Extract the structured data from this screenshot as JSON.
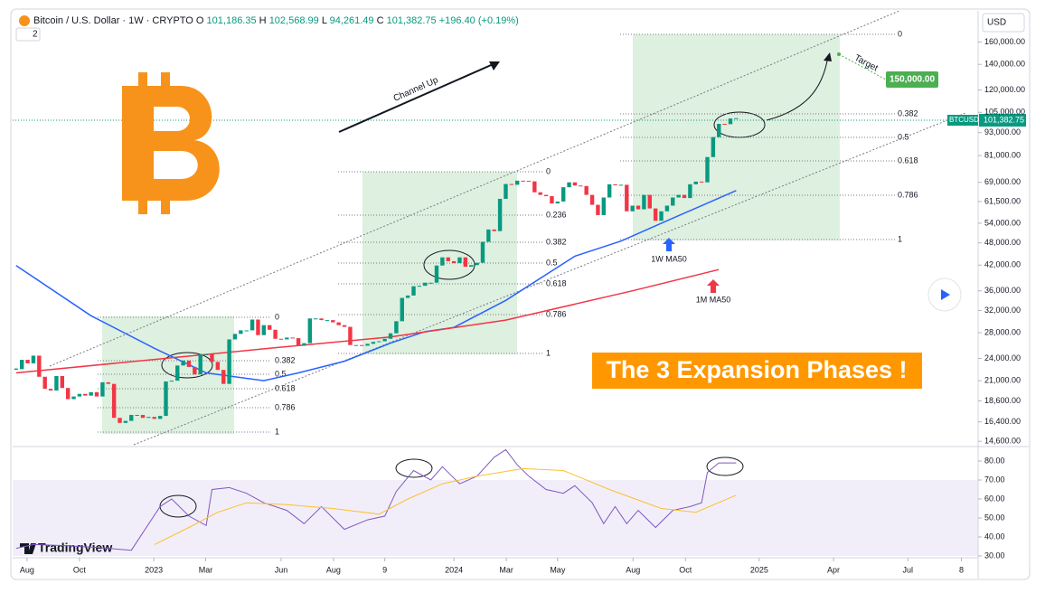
{
  "header": {
    "symbol": "Bitcoin / U.S. Dollar · 1W · CRYPTO",
    "ohlc": [
      {
        "key": "O",
        "value": "101,186.35"
      },
      {
        "key": "H",
        "value": "102,568.99"
      },
      {
        "key": "L",
        "value": "94,261.49"
      },
      {
        "key": "C",
        "value": "101,382.75"
      }
    ],
    "change": "+196.40 (+0.19%)",
    "indicators": "2"
  },
  "currency": "USD",
  "brand": "TradingView",
  "annotations": {
    "channel": "Channel Up",
    "target": "Target",
    "target_price": "150,000.00",
    "banner": "The 3 Expansion Phases !",
    "fib_sets": [
      [
        "0",
        "0.382",
        "0.5",
        "0.618",
        "0.786",
        "1"
      ],
      [
        "0",
        "0.236",
        "0.382",
        "0.5",
        "0.618",
        "0.786",
        "1"
      ],
      [
        "0",
        "0.382",
        "0.5",
        "0.618",
        "0.786",
        "1"
      ]
    ]
  },
  "chart_data": [
    {
      "type": "candlestick",
      "log_scale": true,
      "up_color": "#089981",
      "down_color": "#f23645",
      "closes": [
        22500,
        23800,
        23300,
        24400,
        21500,
        20000,
        19800,
        21600,
        20100,
        18800,
        19100,
        19400,
        19200,
        19600,
        19100,
        20800,
        20600,
        16800,
        16300,
        16500,
        17100,
        17100,
        16800,
        16900,
        16700,
        17000,
        20900,
        21000,
        23000,
        23700,
        22800,
        21800,
        24600,
        24600,
        23500,
        22400,
        20600,
        26900,
        27800,
        28400,
        28400,
        30300,
        27600,
        29300,
        28500,
        27000,
        26900,
        27200,
        27100,
        25900,
        26300,
        30500,
        30500,
        30200,
        30200,
        29800,
        29300,
        29000,
        26000,
        26000,
        25900,
        26200,
        26500,
        26600,
        27000,
        27900,
        30000,
        34500,
        35000,
        37000,
        37100,
        37800,
        37800,
        41900,
        44000,
        43000,
        42500,
        44000,
        41600,
        42000,
        42600,
        48300,
        52000,
        51500,
        62500,
        68300,
        68000,
        69700,
        69600,
        69400,
        65000,
        64000,
        63500,
        60800,
        61500,
        67000,
        69000,
        67700,
        67500,
        64000,
        60300,
        56700,
        63000,
        68200,
        67800,
        68000,
        58000,
        60000,
        58700,
        64000,
        59000,
        54800,
        58000,
        60000,
        63000,
        64000,
        62800,
        68200,
        69300,
        69000,
        80300,
        90500,
        98000,
        97800,
        101200,
        101382.75
      ],
      "xlim": [
        -0.6,
        167
      ],
      "xticks": [
        {
          "value": 1.9,
          "label": "Aug"
        },
        {
          "value": 11,
          "label": "Oct"
        },
        {
          "value": 23.9,
          "label": "2023"
        },
        {
          "value": 32.9,
          "label": "Mar"
        },
        {
          "value": 46,
          "label": "Jun"
        },
        {
          "value": 55.1,
          "label": "Aug"
        },
        {
          "value": 64,
          "label": "9"
        },
        {
          "value": 76,
          "label": "2024"
        },
        {
          "value": 85.1,
          "label": "Mar"
        },
        {
          "value": 94,
          "label": "May"
        },
        {
          "value": 107.1,
          "label": "Aug"
        },
        {
          "value": 116.2,
          "label": "Oct"
        },
        {
          "value": 129,
          "label": "2025"
        },
        {
          "value": 141.9,
          "label": "Apr"
        },
        {
          "value": 154.8,
          "label": "Jul"
        },
        {
          "value": 164.1,
          "label": "8"
        }
      ],
      "ylim": [
        14300,
        193000
      ],
      "yticks": [
        {
          "value": 14600,
          "label": "14,600.00"
        },
        {
          "value": 16400,
          "label": "16,400.00"
        },
        {
          "value": 18600,
          "label": "18,600.00"
        },
        {
          "value": 21000,
          "label": "21,000.00"
        },
        {
          "value": 24000,
          "label": "24,000.00"
        },
        {
          "value": 28000,
          "label": "28,000.00"
        },
        {
          "value": 32000,
          "label": "32,000.00"
        },
        {
          "value": 36000,
          "label": "36,000.00"
        },
        {
          "value": 42000,
          "label": "42,000.00"
        },
        {
          "value": 48000,
          "label": "48,000.00"
        },
        {
          "value": 54000,
          "label": "54,000.00"
        },
        {
          "value": 61500,
          "label": "61,500.00"
        },
        {
          "value": 69000,
          "label": "69,000.00"
        },
        {
          "value": 81000,
          "label": "81,000.00"
        },
        {
          "value": 93000,
          "label": "93,000.00"
        },
        {
          "value": 105000,
          "label": "105,000.00"
        },
        {
          "value": 120000,
          "label": "120,000.00"
        },
        {
          "value": 140000,
          "label": "140,000.00"
        },
        {
          "value": 160000,
          "label": "160,000.00"
        }
      ],
      "series": [
        {
          "name": "1W MA50",
          "color": "#2962ff",
          "x": [
            0,
            13,
            24,
            33,
            43,
            49,
            57,
            65,
            71,
            76,
            85,
            97,
            105,
            113,
            125
          ],
          "values": [
            41900,
            31000,
            25500,
            22000,
            21000,
            22000,
            23600,
            26300,
            28200,
            28900,
            34000,
            44300,
            48500,
            54800,
            65700
          ]
        },
        {
          "name": "1M MA50",
          "color": "#f23645",
          "x": [
            0,
            44,
            65,
            85,
            107,
            122
          ],
          "values": [
            22000,
            25500,
            27300,
            30200,
            36000,
            40900
          ]
        }
      ],
      "last_price": {
        "symbol": "BTCUSD",
        "label": "101,382.75"
      }
    },
    {
      "type": "line",
      "xlim": [
        -0.6,
        167
      ],
      "ylim": [
        30,
        86.2
      ],
      "yticks": [
        {
          "value": 30,
          "label": "30.00"
        },
        {
          "value": 40,
          "label": "40.00"
        },
        {
          "value": 50,
          "label": "50.00"
        },
        {
          "value": 60,
          "label": "60.00"
        },
        {
          "value": 70,
          "label": "70.00"
        },
        {
          "value": 80,
          "label": "80.00"
        }
      ],
      "series": [
        {
          "color": "#7e57c2",
          "x": [
            0,
            3,
            8,
            14,
            20,
            25,
            27,
            30,
            33,
            34,
            37,
            40,
            43,
            47,
            50,
            53,
            57,
            61,
            64,
            66,
            69,
            72,
            74,
            77,
            80,
            83,
            85,
            87,
            89,
            92,
            95,
            97,
            100,
            102,
            104,
            106,
            108,
            111,
            114,
            117,
            119,
            120,
            122,
            125
          ],
          "values": [
            34,
            36,
            35.5,
            34.5,
            33,
            56,
            60,
            51,
            46,
            65,
            66,
            63,
            58,
            54,
            47,
            56,
            44,
            49,
            51,
            64,
            75,
            70,
            77,
            68,
            72,
            82,
            86,
            78,
            72,
            65,
            63,
            67,
            58,
            47,
            56,
            47,
            54,
            45,
            54,
            56,
            58,
            74,
            79,
            79
          ]
        },
        {
          "color": "#fbc02d",
          "x": [
            24,
            30,
            35,
            40,
            47,
            55,
            63,
            68,
            74,
            80,
            88,
            95,
            103,
            112,
            118,
            125
          ],
          "values": [
            36,
            45,
            53,
            58,
            57,
            55,
            52,
            60,
            68,
            72,
            76,
            75,
            65,
            55,
            53,
            62
          ]
        }
      ]
    }
  ]
}
